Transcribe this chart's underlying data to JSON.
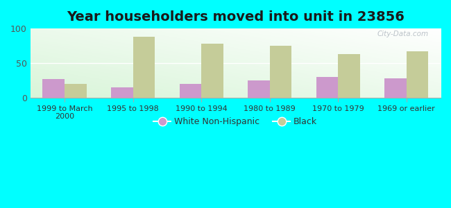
{
  "title": "Year householders moved into unit in 23856",
  "categories": [
    "1999 to March\n2000",
    "1995 to 1998",
    "1990 to 1994",
    "1980 to 1989",
    "1970 to 1979",
    "1969 or earlier"
  ],
  "white_non_hispanic": [
    27,
    15,
    20,
    25,
    30,
    28
  ],
  "black": [
    20,
    88,
    78,
    75,
    63,
    67
  ],
  "white_color": "#cc99cc",
  "black_color": "#c5cc99",
  "background_color": "#00ffff",
  "ylim": [
    0,
    100
  ],
  "yticks": [
    0,
    50,
    100
  ],
  "title_fontsize": 14,
  "legend_labels": [
    "White Non-Hispanic",
    "Black"
  ],
  "bar_width": 0.32,
  "watermark": "City-Data.com"
}
